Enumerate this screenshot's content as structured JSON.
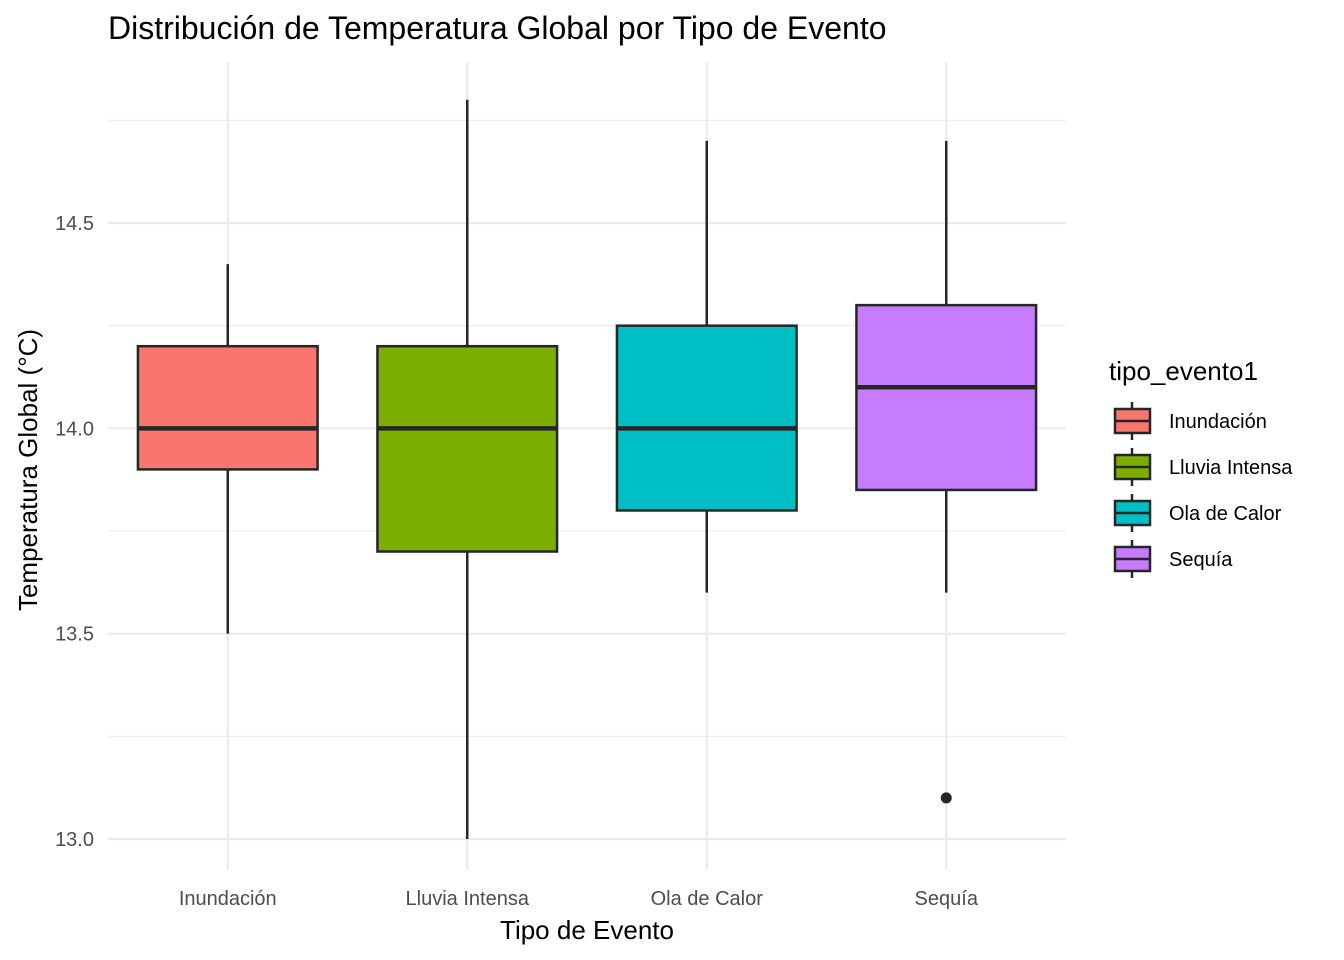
{
  "chart_data": {
    "type": "boxplot",
    "title": "Distribución de Temperatura Global por Tipo de Evento",
    "xlabel": "Tipo de Evento",
    "ylabel": "Temperatura Global (°C)",
    "ylim": [
      12.93,
      14.83
    ],
    "yticks": [
      13.0,
      13.5,
      14.0,
      14.5
    ],
    "ytick_labels": [
      "13.0",
      "13.5",
      "14.0",
      "14.5"
    ],
    "minor_yticks": [
      13.25,
      13.75,
      14.25,
      14.75
    ],
    "grid": true,
    "legend": {
      "title": "tipo_evento1",
      "position": "right"
    },
    "categories": [
      "Inundación",
      "Lluvia Intensa",
      "Ola de Calor",
      "Sequía"
    ],
    "boxes": [
      {
        "category": "Inundación",
        "whisker_low": 13.5,
        "q1": 13.9,
        "median": 14.0,
        "q3": 14.2,
        "whisker_high": 14.4,
        "outliers": [],
        "color": "#F8766D"
      },
      {
        "category": "Lluvia Intensa",
        "whisker_low": 13.0,
        "q1": 13.7,
        "median": 14.0,
        "q3": 14.2,
        "whisker_high": 14.8,
        "outliers": [],
        "color": "#7CAE00"
      },
      {
        "category": "Ola de Calor",
        "whisker_low": 13.6,
        "q1": 13.8,
        "median": 14.0,
        "q3": 14.25,
        "whisker_high": 14.7,
        "outliers": [],
        "color": "#00BFC4"
      },
      {
        "category": "Sequía",
        "whisker_low": 13.6,
        "q1": 13.85,
        "median": 14.1,
        "q3": 14.3,
        "whisker_high": 14.7,
        "outliers": [
          13.1
        ],
        "color": "#C77CFF"
      }
    ]
  }
}
